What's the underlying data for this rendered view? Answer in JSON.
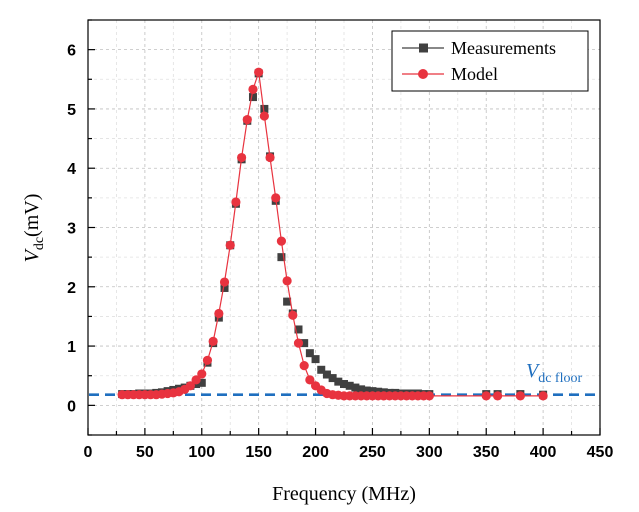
{
  "chart_data": {
    "type": "scatter",
    "xlabel": "Frequency (MHz)",
    "ylabel": {
      "main": "V",
      "sub": "dc",
      "unit": "(mV)"
    },
    "xlim": [
      0,
      450
    ],
    "ylim": [
      -0.5,
      6.5
    ],
    "xticks": [
      "0",
      "50",
      "100",
      "150",
      "200",
      "250",
      "300",
      "350",
      "400",
      "450"
    ],
    "yticks": [
      "0",
      "1",
      "2",
      "3",
      "4",
      "5",
      "6"
    ],
    "grid": true,
    "legend": "top-right",
    "series": [
      {
        "name": "Measurements",
        "color": "#404040",
        "marker": "square",
        "line": false,
        "x": [
          30,
          35,
          40,
          45,
          50,
          55,
          60,
          65,
          70,
          75,
          80,
          85,
          90,
          95,
          100,
          105,
          110,
          115,
          120,
          125,
          130,
          135,
          140,
          145,
          150,
          155,
          160,
          165,
          170,
          175,
          180,
          185,
          190,
          195,
          200,
          205,
          210,
          215,
          220,
          225,
          230,
          235,
          240,
          245,
          250,
          255,
          260,
          265,
          270,
          275,
          280,
          285,
          290,
          295,
          300,
          350,
          360,
          380,
          400
        ],
        "y": [
          0.19,
          0.19,
          0.19,
          0.2,
          0.2,
          0.2,
          0.21,
          0.22,
          0.24,
          0.26,
          0.28,
          0.3,
          0.33,
          0.36,
          0.38,
          0.72,
          1.05,
          1.48,
          1.98,
          2.7,
          3.4,
          4.15,
          4.8,
          5.2,
          5.6,
          5.0,
          4.2,
          3.45,
          2.5,
          1.75,
          1.55,
          1.28,
          1.05,
          0.88,
          0.78,
          0.6,
          0.52,
          0.46,
          0.4,
          0.36,
          0.33,
          0.3,
          0.27,
          0.25,
          0.24,
          0.23,
          0.22,
          0.21,
          0.21,
          0.2,
          0.2,
          0.2,
          0.2,
          0.19,
          0.19,
          0.19,
          0.19,
          0.19,
          0.18
        ]
      },
      {
        "name": "Model",
        "color": "#e8333f",
        "marker": "circle",
        "line": true,
        "x": [
          30,
          35,
          40,
          45,
          50,
          55,
          60,
          65,
          70,
          75,
          80,
          85,
          90,
          95,
          100,
          105,
          110,
          115,
          120,
          125,
          130,
          135,
          140,
          145,
          150,
          155,
          160,
          165,
          170,
          175,
          180,
          185,
          190,
          195,
          200,
          205,
          210,
          215,
          220,
          225,
          230,
          235,
          240,
          245,
          250,
          255,
          260,
          265,
          270,
          275,
          280,
          285,
          290,
          295,
          300,
          350,
          360,
          380,
          400
        ],
        "y": [
          0.18,
          0.18,
          0.18,
          0.18,
          0.18,
          0.18,
          0.18,
          0.19,
          0.2,
          0.21,
          0.23,
          0.27,
          0.33,
          0.43,
          0.53,
          0.76,
          1.08,
          1.55,
          2.08,
          2.7,
          3.43,
          4.18,
          4.82,
          5.33,
          5.62,
          4.88,
          4.18,
          3.5,
          2.77,
          2.1,
          1.52,
          1.05,
          0.67,
          0.43,
          0.33,
          0.26,
          0.2,
          0.18,
          0.17,
          0.16,
          0.16,
          0.16,
          0.16,
          0.16,
          0.16,
          0.16,
          0.16,
          0.16,
          0.16,
          0.16,
          0.16,
          0.16,
          0.16,
          0.16,
          0.16,
          0.16,
          0.16,
          0.16,
          0.16
        ]
      }
    ],
    "reference_line": {
      "y": 0.18,
      "color": "#1f6fbf",
      "style": "dashed",
      "label": {
        "main": "V",
        "sub": "dc floor"
      }
    }
  }
}
